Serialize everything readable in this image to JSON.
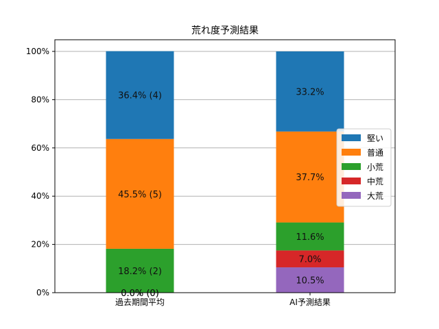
{
  "chart_data": {
    "type": "bar",
    "stacked": true,
    "title": "荒れ度予測結果",
    "categories": [
      "過去期間平均",
      "AI予測結果"
    ],
    "ylim": [
      0,
      100
    ],
    "yticks": [
      0,
      20,
      40,
      60,
      80,
      100
    ],
    "ytick_labels": [
      "0%",
      "20%",
      "40%",
      "60%",
      "80%",
      "100%"
    ],
    "grid": "y",
    "legend_position": "right",
    "series": [
      {
        "name": "大荒",
        "color": "#9467bd",
        "values": [
          0.0,
          10.5
        ],
        "labels": [
          "0.0% (0)",
          "10.5%"
        ]
      },
      {
        "name": "中荒",
        "color": "#d62728",
        "values": [
          0.0,
          7.0
        ],
        "labels": [
          "0.0% (0)",
          "7.0%"
        ]
      },
      {
        "name": "小荒",
        "color": "#2ca02c",
        "values": [
          18.2,
          11.6
        ],
        "labels": [
          "18.2% (2)",
          "11.6%"
        ]
      },
      {
        "name": "普通",
        "color": "#ff7f0e",
        "values": [
          45.5,
          37.7
        ],
        "labels": [
          "45.5% (5)",
          "37.7%"
        ]
      },
      {
        "name": "堅い",
        "color": "#1f77b4",
        "values": [
          36.4,
          33.2
        ],
        "labels": [
          "36.4% (4)",
          "33.2%"
        ]
      }
    ],
    "legend_order": [
      "堅い",
      "普通",
      "小荒",
      "中荒",
      "大荒"
    ]
  }
}
